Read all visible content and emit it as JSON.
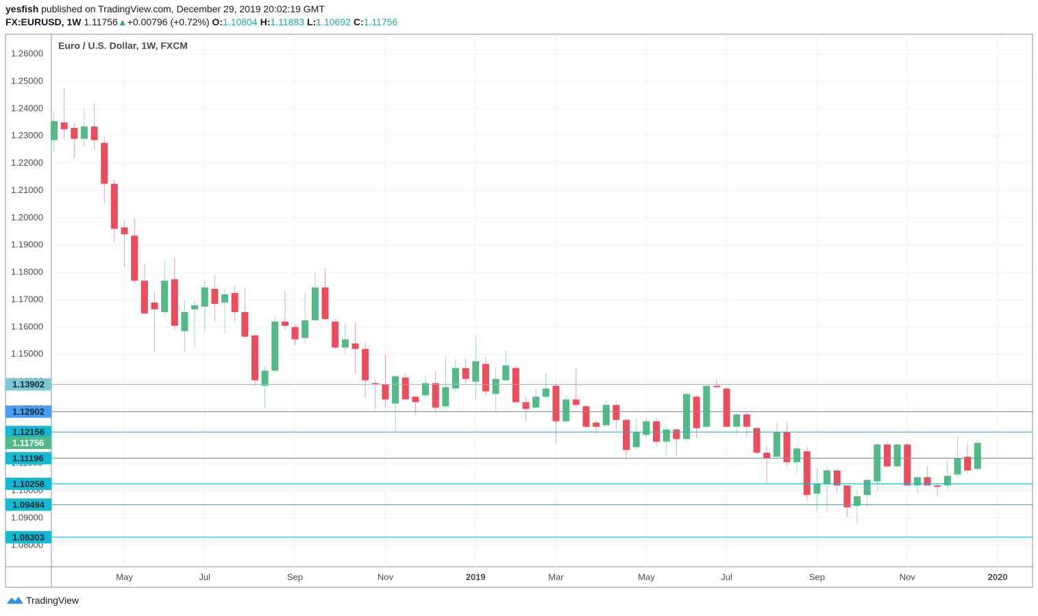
{
  "header": {
    "author": "yesfish",
    "published": "published on TradingView.com, December 29, 2019 20:02:19 GMT",
    "symbol": "FX:EURUSD, 1W",
    "price": 1.11756,
    "arrow": "▲",
    "change": "+0.00796 (+0.72%)",
    "ohlc": [
      {
        "label": "O:",
        "value": 1.10804
      },
      {
        "label": "H:",
        "value": 1.11883
      },
      {
        "label": "L:",
        "value": 1.10692
      },
      {
        "label": "C:",
        "value": 1.11756
      }
    ]
  },
  "chart_data": {
    "type": "candlestick",
    "title": "Euro / U.S. Dollar, 1W, FXCM",
    "categories": [
      null,
      null,
      null,
      null,
      null,
      null,
      null,
      "May",
      null,
      null,
      null,
      null,
      null,
      null,
      null,
      "Jul",
      null,
      null,
      null,
      null,
      null,
      null,
      null,
      null,
      "Sep",
      null,
      null,
      null,
      null,
      null,
      null,
      null,
      null,
      "Nov",
      null,
      null,
      null,
      null,
      null,
      null,
      null,
      null,
      "2019",
      null,
      null,
      null,
      null,
      null,
      null,
      null,
      "Mar",
      null,
      null,
      null,
      null,
      null,
      null,
      null,
      null,
      "May",
      null,
      null,
      null,
      null,
      null,
      null,
      null,
      "Jul",
      null,
      null,
      null,
      null,
      null,
      null,
      null,
      null,
      "Sep",
      null,
      null,
      null,
      null,
      null,
      null,
      null,
      null,
      "Nov",
      null,
      null,
      null,
      null,
      null,
      null,
      null,
      null,
      "2020"
    ],
    "open": [
      1.2285,
      1.235,
      1.233,
      1.229,
      1.2335,
      1.2275,
      1.2125,
      1.1965,
      1.1935,
      1.177,
      1.169,
      1.1655,
      1.1775,
      1.1585,
      1.1665,
      1.1675,
      1.174,
      1.169,
      1.1725,
      1.1655,
      1.157,
      1.1385,
      1.144,
      1.162,
      1.16,
      1.156,
      1.1625,
      1.1745,
      1.162,
      1.1525,
      1.154,
      1.152,
      1.1395,
      1.139,
      1.132,
      1.1415,
      1.1345,
      1.135,
      1.1395,
      1.131,
      1.1375,
      1.145,
      1.14,
      1.1465,
      1.1355,
      1.1405,
      1.145,
      1.1325,
      1.1305,
      1.1345,
      1.1385,
      1.1255,
      1.1335,
      1.131,
      1.125,
      1.124,
      1.1315,
      1.126,
      1.116,
      1.1205,
      1.1255,
      1.118,
      1.1225,
      1.119,
      1.1345,
      1.1235,
      1.1385,
      1.1375,
      1.1235,
      1.128,
      1.123,
      1.114,
      1.1125,
      1.1215,
      1.1105,
      1.1145,
      1.099,
      1.1025,
      1.1075,
      1.102,
      1.0945,
      1.0985,
      1.1035,
      1.117,
      1.109,
      1.117,
      1.102,
      1.105,
      1.102,
      1.102,
      1.106,
      1.1125,
      1.10804,
      null,
      null
    ],
    "high": [
      1.239,
      1.2477,
      1.2345,
      1.24,
      1.242,
      1.2295,
      1.214,
      1.199,
      1.2,
      1.183,
      1.173,
      1.1845,
      1.1855,
      1.17,
      1.17,
      1.177,
      1.179,
      1.174,
      1.175,
      1.1745,
      1.157,
      1.146,
      1.164,
      1.1735,
      1.161,
      1.1725,
      1.18,
      1.1815,
      1.163,
      1.1615,
      1.1615,
      1.1545,
      1.141,
      1.15,
      1.1425,
      1.143,
      1.135,
      1.142,
      1.144,
      1.149,
      1.1485,
      1.1485,
      1.157,
      1.149,
      1.145,
      1.1515,
      1.146,
      1.1345,
      1.1375,
      1.143,
      1.1395,
      1.135,
      1.145,
      1.1315,
      1.126,
      1.133,
      1.1325,
      1.1265,
      1.1265,
      1.1265,
      1.1265,
      1.124,
      1.123,
      1.1365,
      1.135,
      1.1385,
      1.141,
      1.138,
      1.1285,
      1.129,
      1.1235,
      1.1165,
      1.125,
      1.125,
      1.1165,
      1.116,
      1.1085,
      1.109,
      1.108,
      1.102,
      1.1,
      1.1045,
      1.1175,
      1.118,
      1.118,
      1.1175,
      1.1055,
      1.109,
      1.1025,
      1.111,
      1.12,
      1.1175,
      1.11883,
      null,
      null
    ],
    "low": [
      1.224,
      1.229,
      1.2215,
      1.226,
      1.225,
      1.2055,
      1.191,
      1.182,
      1.176,
      1.1645,
      1.151,
      1.164,
      1.159,
      1.151,
      1.1525,
      1.1585,
      1.162,
      1.1575,
      1.162,
      1.156,
      1.1385,
      1.13,
      1.1435,
      1.159,
      1.1535,
      1.154,
      1.162,
      1.1625,
      1.152,
      1.15,
      1.143,
      1.134,
      1.13,
      1.1305,
      1.1215,
      1.133,
      1.128,
      1.134,
      1.1285,
      1.13,
      1.136,
      1.1395,
      1.1335,
      1.135,
      1.129,
      1.1405,
      1.132,
      1.1255,
      1.1305,
      1.134,
      1.1175,
      1.125,
      1.1305,
      1.123,
      1.121,
      1.124,
      1.1225,
      1.1115,
      1.115,
      1.1195,
      1.1165,
      1.1125,
      1.113,
      1.118,
      1.1195,
      1.1225,
      1.1375,
      1.1235,
      1.1205,
      1.12,
      1.1135,
      1.1025,
      1.1125,
      1.109,
      1.1065,
      1.0965,
      1.0925,
      1.0925,
      1.099,
      1.0905,
      1.088,
      1.094,
      1.1,
      1.1085,
      1.1085,
      1.102,
      1.099,
      1.102,
      1.098,
      1.1005,
      1.105,
      1.1065,
      1.10692,
      null,
      null
    ],
    "close": [
      1.2355,
      1.2325,
      1.229,
      1.2335,
      1.2285,
      1.2125,
      1.196,
      1.194,
      1.177,
      1.165,
      1.1665,
      1.177,
      1.1605,
      1.1655,
      1.168,
      1.1745,
      1.1685,
      1.172,
      1.1655,
      1.1565,
      1.1405,
      1.144,
      1.162,
      1.1605,
      1.1555,
      1.1625,
      1.1745,
      1.163,
      1.1525,
      1.1555,
      1.152,
      1.1405,
      1.139,
      1.1335,
      1.142,
      1.1335,
      1.1325,
      1.1395,
      1.1305,
      1.138,
      1.145,
      1.141,
      1.1475,
      1.1365,
      1.141,
      1.146,
      1.1325,
      1.13,
      1.1345,
      1.1375,
      1.1255,
      1.1335,
      1.1315,
      1.1235,
      1.1235,
      1.1315,
      1.126,
      1.115,
      1.1215,
      1.1255,
      1.118,
      1.1225,
      1.119,
      1.1355,
      1.123,
      1.1385,
      1.138,
      1.1235,
      1.128,
      1.1235,
      1.114,
      1.112,
      1.1215,
      1.1105,
      1.1155,
      1.0985,
      1.1025,
      1.1075,
      1.102,
      1.094,
      1.098,
      1.104,
      1.117,
      1.109,
      1.117,
      1.102,
      1.105,
      1.102,
      1.1015,
      1.1055,
      1.112,
      1.1075,
      1.11756,
      null,
      null
    ],
    "up_color": "#53b987",
    "down_color": "#eb4d5c",
    "ylim": [
      1.0722,
      1.2673
    ],
    "yticks": [
      {
        "value": 1.26,
        "label": "1.26000"
      },
      {
        "value": 1.25,
        "label": "1.25000"
      },
      {
        "value": 1.24,
        "label": "1.24000"
      },
      {
        "value": 1.23,
        "label": "1.23000"
      },
      {
        "value": 1.22,
        "label": "1.22000"
      },
      {
        "value": 1.21,
        "label": "1.21000"
      },
      {
        "value": 1.2,
        "label": "1.20000"
      },
      {
        "value": 1.19,
        "label": "1.19000"
      },
      {
        "value": 1.18,
        "label": "1.18000"
      },
      {
        "value": 1.17,
        "label": "1.17000"
      },
      {
        "value": 1.16,
        "label": "1.16000"
      },
      {
        "value": 1.15,
        "label": "1.15000"
      },
      {
        "value": 1.14,
        "label": "1.14000"
      },
      {
        "value": 1.13,
        "label": "1.13000"
      },
      {
        "value": 1.12,
        "label": "1.12000"
      },
      {
        "value": 1.11,
        "label": "1.11000"
      },
      {
        "value": 1.1,
        "label": "1.10000"
      },
      {
        "value": 1.09,
        "label": "1.09000"
      },
      {
        "value": 1.08,
        "label": "1.08000"
      }
    ],
    "grid": true,
    "price_lines": [
      {
        "value": 1.13902,
        "color": "#7fc6d4"
      },
      {
        "value": 1.12902,
        "color": "#4a9cf0"
      },
      {
        "value": 1.12156,
        "color": "#14b8d0"
      },
      {
        "value": 1.11196,
        "color": "#14b8d0"
      },
      {
        "value": 1.10258,
        "color": "#14b8d0"
      },
      {
        "value": 1.09494,
        "color": "#14b8d0"
      },
      {
        "value": 1.08303,
        "color": "#14b8d0"
      }
    ],
    "last_price_color": "#53b987"
  },
  "footer": {
    "brand": "TradingView"
  }
}
